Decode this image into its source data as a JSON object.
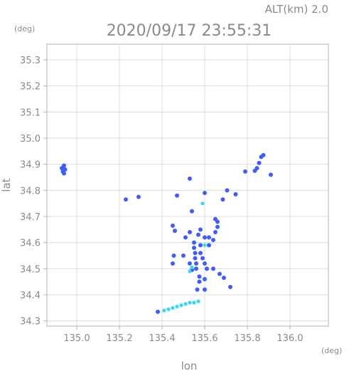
{
  "header": {
    "altitude_label": "ALT(km) 2.0",
    "timestamp": "2020/09/17 23:55:31"
  },
  "chart_data": {
    "type": "scatter",
    "title": "2020/09/17 23:55:31",
    "subtitle": "ALT(km) 2.0",
    "xlabel": "lon",
    "ylabel": "lat",
    "x_unit": "(deg)",
    "y_unit": "(deg)",
    "xlim": [
      134.86,
      136.18
    ],
    "ylim": [
      34.28,
      35.36
    ],
    "x_ticks": [
      135.0,
      135.2,
      135.4,
      135.6,
      135.8,
      136.0
    ],
    "x_tick_labels": [
      "135.0",
      "135.2",
      "135.4",
      "135.6",
      "135.8",
      "136.0"
    ],
    "y_ticks": [
      34.3,
      34.4,
      34.5,
      34.6,
      34.7,
      34.8,
      34.9,
      35.0,
      35.1,
      35.2,
      35.3
    ],
    "y_tick_labels": [
      "34.3",
      "34.4",
      "34.5",
      "34.6",
      "34.7",
      "34.8",
      "34.9",
      "35.0",
      "35.1",
      "35.2",
      "35.3"
    ],
    "grid": true,
    "colors": {
      "strong": "#3f5cff",
      "weak": "#35d8f2",
      "frame": "#b4b4b4",
      "text": "#8a8a8a"
    },
    "series": [
      {
        "level": "strong",
        "points": [
          [
            134.94,
            34.895
          ],
          [
            134.93,
            34.885
          ],
          [
            134.945,
            34.88
          ],
          [
            134.935,
            34.872
          ],
          [
            134.94,
            34.865
          ],
          [
            135.835,
            34.875
          ],
          [
            135.845,
            34.885
          ],
          [
            135.855,
            34.905
          ],
          [
            135.865,
            34.928
          ],
          [
            135.875,
            34.935
          ],
          [
            135.79,
            34.872
          ],
          [
            135.91,
            34.86
          ],
          [
            135.745,
            34.785
          ],
          [
            135.705,
            34.8
          ],
          [
            135.685,
            34.765
          ],
          [
            135.53,
            34.845
          ],
          [
            135.47,
            34.78
          ],
          [
            135.6,
            34.79
          ],
          [
            135.23,
            34.765
          ],
          [
            135.29,
            34.775
          ],
          [
            135.45,
            34.665
          ],
          [
            135.46,
            34.645
          ],
          [
            135.54,
            34.72
          ],
          [
            135.55,
            34.6
          ],
          [
            135.55,
            34.58
          ],
          [
            135.555,
            34.56
          ],
          [
            135.555,
            34.54
          ],
          [
            135.56,
            34.52
          ],
          [
            135.56,
            34.5
          ],
          [
            135.58,
            34.59
          ],
          [
            135.58,
            34.56
          ],
          [
            135.59,
            34.54
          ],
          [
            135.6,
            34.52
          ],
          [
            135.61,
            34.5
          ],
          [
            135.575,
            34.47
          ],
          [
            135.575,
            34.45
          ],
          [
            135.6,
            34.46
          ],
          [
            135.53,
            34.64
          ],
          [
            135.51,
            34.62
          ],
          [
            135.57,
            34.63
          ],
          [
            135.58,
            34.65
          ],
          [
            135.6,
            34.62
          ],
          [
            135.65,
            34.69
          ],
          [
            135.66,
            34.68
          ],
          [
            135.66,
            34.66
          ],
          [
            135.65,
            34.64
          ],
          [
            135.64,
            34.61
          ],
          [
            135.62,
            34.62
          ],
          [
            135.62,
            34.59
          ],
          [
            135.64,
            34.5
          ],
          [
            135.67,
            34.48
          ],
          [
            135.69,
            34.465
          ],
          [
            135.53,
            34.52
          ],
          [
            135.54,
            34.495
          ],
          [
            135.5,
            34.55
          ],
          [
            135.565,
            34.42
          ],
          [
            135.6,
            34.42
          ],
          [
            135.455,
            34.55
          ],
          [
            135.45,
            34.52
          ],
          [
            135.72,
            34.43
          ],
          [
            135.38,
            34.335
          ]
        ]
      },
      {
        "level": "weak",
        "points": [
          [
            135.41,
            34.34
          ],
          [
            135.43,
            34.345
          ],
          [
            135.45,
            34.35
          ],
          [
            135.47,
            34.355
          ],
          [
            135.49,
            34.36
          ],
          [
            135.51,
            34.365
          ],
          [
            135.53,
            34.37
          ],
          [
            135.55,
            34.37
          ],
          [
            135.57,
            34.375
          ],
          [
            135.53,
            34.49
          ],
          [
            135.54,
            34.505
          ],
          [
            135.6,
            34.59
          ],
          [
            135.59,
            34.75
          ]
        ]
      }
    ]
  }
}
